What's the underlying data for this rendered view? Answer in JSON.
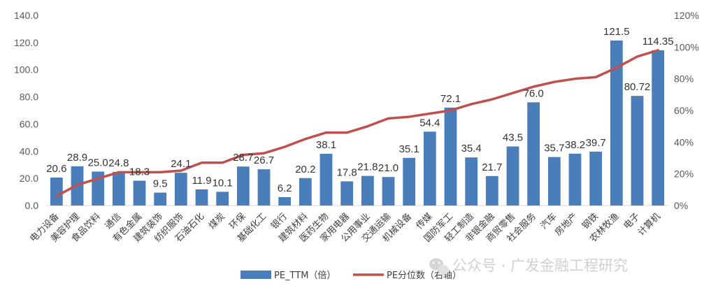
{
  "chart_data": {
    "type": "bar+line",
    "title": "",
    "categories": [
      "电力设备",
      "美容护理",
      "食品饮料",
      "通信",
      "有色金属",
      "建筑装饰",
      "纺织服饰",
      "石油石化",
      "煤炭",
      "环保",
      "基础化工",
      "银行",
      "建筑材料",
      "医药生物",
      "家用电器",
      "公用事业",
      "交通运输",
      "机械设备",
      "传媒",
      "国防军工",
      "轻工制造",
      "非银金融",
      "商贸零售",
      "社会服务",
      "汽车",
      "房地产",
      "钢铁",
      "农林牧渔",
      "电子",
      "计算机"
    ],
    "series": [
      {
        "name": "PE_TTM（倍）",
        "type": "bar",
        "axis": "left",
        "color": "#4a7ebb",
        "values": [
          20.6,
          28.9,
          25.0,
          24.8,
          18.3,
          9.5,
          24.1,
          11.9,
          10.1,
          28.7,
          26.7,
          6.2,
          20.2,
          38.1,
          17.8,
          21.8,
          21.0,
          35.1,
          54.4,
          72.1,
          35.4,
          21.7,
          43.5,
          76.0,
          35.7,
          38.2,
          39.7,
          121.5,
          80.72,
          114.35
        ],
        "labels": [
          "20.6",
          "28.9",
          "25.0",
          "24.8",
          "18.3",
          "9.5",
          "24.1",
          "11.9",
          "10.1",
          "28.7",
          "26.7",
          "6.2",
          "20.2",
          "38.1",
          "17.8",
          "21.8",
          "21.0",
          "35.1",
          "54.4",
          "72.1",
          "35.4",
          "21.7",
          "43.5",
          "76.0",
          "35.7",
          "38.2",
          "39.7",
          "121.5",
          "80.72",
          "114.35"
        ]
      },
      {
        "name": "PE分位数（右轴）",
        "type": "line",
        "axis": "right",
        "color": "#c0504d",
        "values": [
          6,
          13,
          17,
          21,
          21,
          21,
          22,
          27,
          27,
          32,
          33,
          37,
          42,
          46,
          46,
          50,
          55,
          56,
          58,
          60,
          64,
          67,
          71,
          75,
          78,
          80,
          81,
          87,
          94,
          98
        ]
      }
    ],
    "left_axis": {
      "min": 0,
      "max": 140,
      "step": 20,
      "tick_labels": [
        "0.0",
        "20.0",
        "40.0",
        "60.0",
        "80.0",
        "100.0",
        "120.0",
        "140.0"
      ]
    },
    "right_axis": {
      "min": 0,
      "max": 120,
      "step": 20,
      "tick_labels": [
        "0%",
        "20%",
        "40%",
        "60%",
        "80%",
        "100%",
        "120%"
      ]
    },
    "legend": {
      "position": "bottom"
    }
  },
  "watermark": {
    "text": "公众号 · 广发金融工程研究",
    "icon": "wechat-icon"
  }
}
